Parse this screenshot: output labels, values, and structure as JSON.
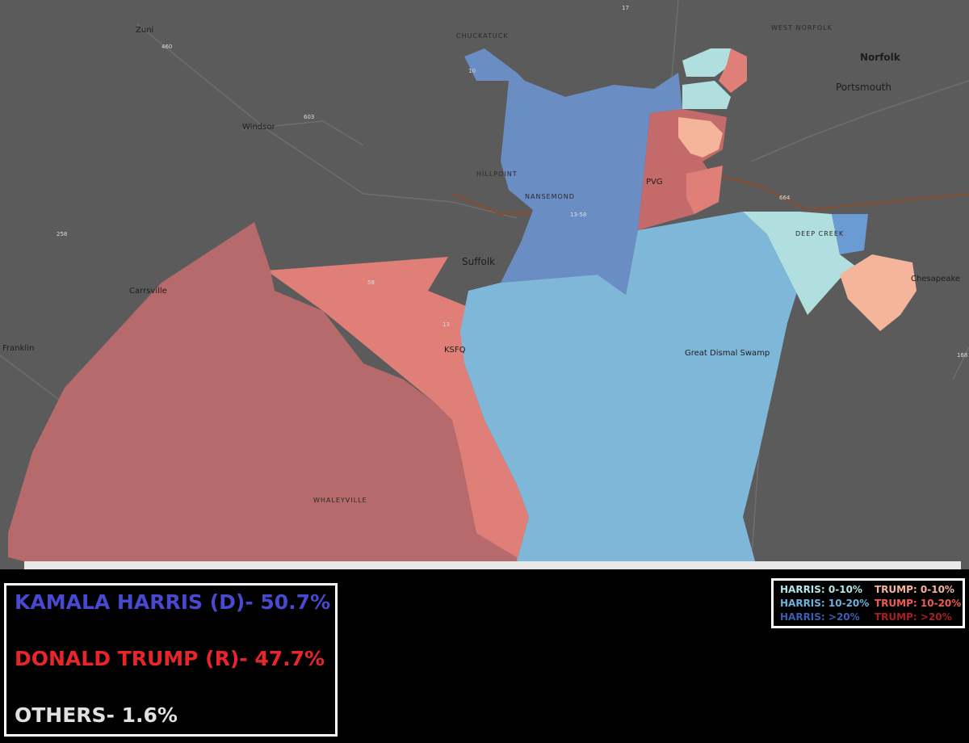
{
  "map": {
    "places": [
      "Zuni",
      "CHUCKATUCK",
      "WEST NORFOLK",
      "Norfolk",
      "Portsmouth",
      "Windsor",
      "HILLPOINT",
      "NANSEMOND",
      "PVG",
      "Suffolk",
      "Carrsville",
      "Franklin",
      "KSFQ",
      "Great Dismal Swamp",
      "WHALEYVILLE",
      "DEEP CREEK",
      "Chesapeake"
    ],
    "routes": [
      "460",
      "10",
      "603",
      "17",
      "258",
      "58",
      "13",
      "13-58",
      "664",
      "168"
    ]
  },
  "results": [
    "KAMALA HARRIS (D)- 50.7%",
    "DONALD TRUMP (R)- 47.7%",
    "OTHERS- 1.6%"
  ],
  "legend": [
    "HARRIS: 0-10%",
    "HARRIS: 10-20%",
    "HARRIS: >20%",
    "TRUMP: 0-10%",
    "TRUMP: 10-20%",
    "TRUMP: >20%"
  ]
}
